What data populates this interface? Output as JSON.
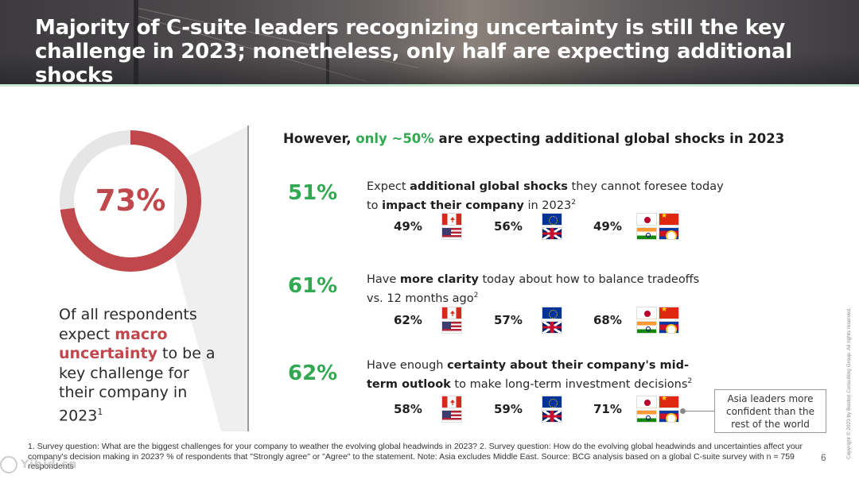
{
  "header": {
    "title": "Majority of C-suite leaders recognizing uncertainty is still the key challenge in 2023; nonetheless, only half are expecting additional shocks"
  },
  "left": {
    "donut_value": "73%",
    "donut_fraction": 0.73,
    "text_1": "Of all respondents expect ",
    "text_highlight": "macro uncertainty",
    "text_2": " to be a key challenge for their company in 2023",
    "text_sup": "1"
  },
  "subhead": {
    "pre": "However, ",
    "highlight": "only ~50%",
    "post": " are expecting additional global shocks in 2023"
  },
  "stats": [
    {
      "value": "51%",
      "desc_1": "Expect ",
      "desc_bold_1": "additional global shocks",
      "desc_2": " they cannot foresee today to ",
      "desc_bold_2": "impact their company",
      "desc_3": " in 2023",
      "desc_sup": "2",
      "regions": [
        "49%",
        "56%",
        "49%"
      ]
    },
    {
      "value": "61%",
      "desc_1": "Have ",
      "desc_bold_1": "more clarity",
      "desc_2": " today about how to balance tradeoffs vs. 12 months ago",
      "desc_bold_2": "",
      "desc_3": "",
      "desc_sup": "2",
      "regions": [
        "62%",
        "57%",
        "68%"
      ]
    },
    {
      "value": "62%",
      "desc_1": "Have enough ",
      "desc_bold_1": "certainty about their company's mid-term outlook",
      "desc_2": " to make long-term investment decisions",
      "desc_bold_2": "",
      "desc_3": "",
      "desc_sup": "2",
      "regions": [
        "58%",
        "59%",
        "71%"
      ]
    }
  ],
  "flag_icons": {
    "north_america": [
      "canada-flag-icon",
      "usa-flag-icon"
    ],
    "europe": [
      "eu-flag-icon",
      "uk-flag-icon"
    ],
    "asia": [
      "japan-flag-icon",
      "china-flag-icon",
      "india-flag-icon",
      "asean-flag-icon"
    ]
  },
  "callout": "Asia leaders more confident than the rest of the world",
  "footnote": "1. Survey question: What are the biggest challenges for your company to weather the evolving global headwinds in 2023? 2. Survey question: How do the evolving global headwinds and uncertainties affect your company's decision making in 2023? % of respondents that \"Strongly agree\" or \"Agree\" to the statement. Note: Asia excludes Middle East. Source: BCG analysis based on a global C-suite survey with n = 759 respondents",
  "page_number": "6",
  "copyright": "Copyright © 2023 by Boston Consulting Group. All rights reserved.",
  "watermark": "Yibid.cn",
  "colors": {
    "accent_red": "#c0474c",
    "accent_green": "#32a852",
    "donut_track": "#e6e6e6"
  }
}
